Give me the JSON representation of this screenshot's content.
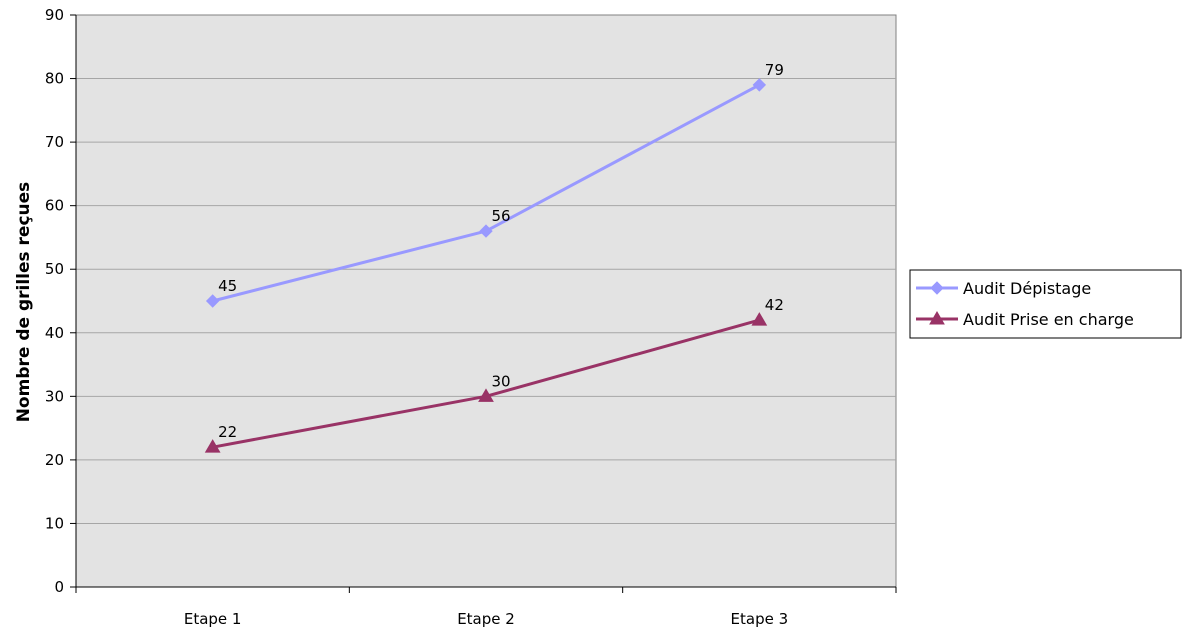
{
  "chart_data": {
    "type": "line",
    "title": "",
    "xlabel": "",
    "ylabel": "Nombre de grilles reçues",
    "categories": [
      "Etape 1",
      "Etape 2",
      "Etape 3"
    ],
    "ylim": [
      0,
      90
    ],
    "yticks": [
      0,
      10,
      20,
      30,
      40,
      50,
      60,
      70,
      80,
      90
    ],
    "grid": true,
    "legend_position": "right",
    "series": [
      {
        "name": "Audit Dépistage",
        "values": [
          45,
          56,
          79
        ],
        "color": "#9999ff",
        "marker": "diamond"
      },
      {
        "name": "Audit Prise en charge",
        "values": [
          22,
          30,
          42
        ],
        "color": "#993366",
        "marker": "triangle"
      }
    ],
    "data_labels": true,
    "plot_background": "#e3e3e3",
    "gridline_color": "#a6a6a6"
  }
}
